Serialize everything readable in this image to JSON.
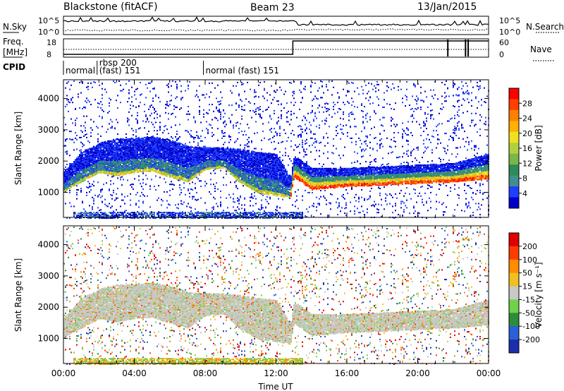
{
  "header": {
    "radar": "Blackstone (fitACF)",
    "beam": "Beam 23",
    "date": "13/Jan/2015"
  },
  "noise_panel": {
    "left_label": "N.Sky",
    "right_label": "N.Search",
    "left_ticks": [
      "10^5",
      "10^0"
    ],
    "right_ticks": [
      "10^5",
      "10^0"
    ]
  },
  "freq_panel": {
    "left_label": "Freq.",
    "left_unit": "[MHz]",
    "right_label": "Nave",
    "left_ticks": [
      "18",
      "8"
    ],
    "right_ticks": [
      "60",
      "0"
    ]
  },
  "cpid": {
    "label": "CPID",
    "segments": [
      {
        "start_h": 0.0,
        "end_h": 1.9,
        "text": "normal"
      },
      {
        "start_h": 1.9,
        "end_h": 7.9,
        "text": "rbsp 200",
        "text2": "(fast) 151"
      },
      {
        "start_h": 7.9,
        "end_h": 24.0,
        "text": "normal (fast)  151"
      }
    ]
  },
  "chart_data": [
    {
      "type": "heatmap",
      "name": "power",
      "ylabel": "Slant Range [km]",
      "xlabel": "",
      "xlim": [
        0,
        24
      ],
      "ylim": [
        200,
        4600
      ],
      "y_ticks": [
        "1000",
        "2000",
        "3000",
        "4000"
      ],
      "colorbar": {
        "label": "Power [dB]",
        "range": [
          0,
          32
        ],
        "ticks": [
          "4",
          "8",
          "12",
          "16",
          "20",
          "24",
          "28"
        ]
      },
      "bands": [
        {
          "label": "scatter lower edge",
          "x": [
            0,
            1,
            2,
            3,
            4,
            5,
            6,
            7,
            8,
            9,
            10,
            11,
            12,
            12.8,
            13,
            14,
            16,
            18,
            20,
            22,
            24
          ],
          "y": [
            1050,
            1350,
            1650,
            1550,
            1650,
            1700,
            1500,
            1350,
            1750,
            1800,
            1300,
            1000,
            900,
            850,
            1500,
            1100,
            1200,
            1250,
            1300,
            1350,
            1450
          ]
        },
        {
          "label": "scatter upper edge",
          "x": [
            0,
            1,
            2,
            3,
            4,
            5,
            6,
            7,
            8,
            9,
            10,
            11,
            12,
            12.8,
            13,
            14,
            16,
            18,
            20,
            22,
            24
          ],
          "y": [
            1700,
            2300,
            2600,
            2750,
            2750,
            2800,
            2700,
            2500,
            2450,
            2450,
            2400,
            2300,
            2250,
            1500,
            2200,
            1800,
            1800,
            1850,
            1900,
            1950,
            2250
          ]
        }
      ]
    },
    {
      "type": "heatmap",
      "name": "velocity",
      "ylabel": "Slant Range [km]",
      "xlabel": "Time UT",
      "xlim": [
        0,
        24
      ],
      "ylim": [
        200,
        4600
      ],
      "x_ticks": [
        "00:00",
        "04:00",
        "08:00",
        "12:00",
        "16:00",
        "20:00",
        "00:00"
      ],
      "y_ticks": [
        "1000",
        "2000",
        "3000",
        "4000"
      ],
      "colorbar": {
        "label": "Velocity [m s⁻¹]",
        "ticks": [
          "200",
          "100",
          "50",
          "15",
          "-15",
          "-50",
          "-100",
          "-200"
        ]
      }
    }
  ],
  "colors": {
    "power_scale": [
      "#0000cc",
      "#2040ff",
      "#3f8f8f",
      "#2e8b57",
      "#7ab648",
      "#b0d040",
      "#f0e020",
      "#ffb000",
      "#ff8000",
      "#ff4000",
      "#ff0000"
    ],
    "velocity_scale": [
      "#1c2faa",
      "#2a5fd9",
      "#2d8c3c",
      "#6fd14c",
      "#c8c8c4",
      "#f0c020",
      "#ff8c00",
      "#ff3c00",
      "#e00000"
    ]
  }
}
